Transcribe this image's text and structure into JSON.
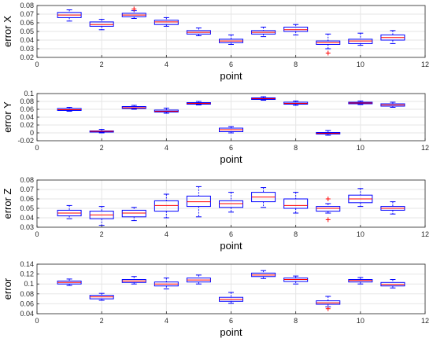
{
  "chart_data": [
    {
      "type": "boxplot",
      "xlabel": "point",
      "ylabel": "error X",
      "xlim": [
        0,
        12
      ],
      "xticks": [
        0,
        2,
        4,
        6,
        8,
        10,
        12
      ],
      "ylim": [
        0.02,
        0.08
      ],
      "yticks": [
        0.02,
        0.03,
        0.04,
        0.05,
        0.06,
        0.07,
        0.08
      ],
      "ytick_labels": [
        "0.02",
        "0.03",
        "0.04",
        "0.05",
        "0.06",
        "0.07",
        "0.08"
      ],
      "grid": true,
      "boxes": [
        {
          "x": 1,
          "whisker_low": 0.062,
          "q1": 0.066,
          "median": 0.069,
          "q3": 0.072,
          "whisker_high": 0.075,
          "outliers": []
        },
        {
          "x": 2,
          "whisker_low": 0.052,
          "q1": 0.056,
          "median": 0.058,
          "q3": 0.061,
          "whisker_high": 0.064,
          "outliers": []
        },
        {
          "x": 3,
          "whisker_low": 0.065,
          "q1": 0.067,
          "median": 0.069,
          "q3": 0.071,
          "whisker_high": 0.074,
          "outliers": [
            0.076
          ]
        },
        {
          "x": 4,
          "whisker_low": 0.056,
          "q1": 0.058,
          "median": 0.061,
          "q3": 0.063,
          "whisker_high": 0.066,
          "outliers": []
        },
        {
          "x": 5,
          "whisker_low": 0.045,
          "q1": 0.047,
          "median": 0.049,
          "q3": 0.051,
          "whisker_high": 0.054,
          "outliers": []
        },
        {
          "x": 6,
          "whisker_low": 0.035,
          "q1": 0.037,
          "median": 0.039,
          "q3": 0.041,
          "whisker_high": 0.046,
          "outliers": []
        },
        {
          "x": 7,
          "whisker_low": 0.044,
          "q1": 0.047,
          "median": 0.049,
          "q3": 0.051,
          "whisker_high": 0.055,
          "outliers": []
        },
        {
          "x": 8,
          "whisker_low": 0.046,
          "q1": 0.05,
          "median": 0.052,
          "q3": 0.055,
          "whisker_high": 0.058,
          "outliers": []
        },
        {
          "x": 9,
          "whisker_low": 0.03,
          "q1": 0.035,
          "median": 0.037,
          "q3": 0.039,
          "whisker_high": 0.047,
          "outliers": [
            0.025
          ]
        },
        {
          "x": 10,
          "whisker_low": 0.034,
          "q1": 0.036,
          "median": 0.039,
          "q3": 0.041,
          "whisker_high": 0.048,
          "outliers": []
        },
        {
          "x": 11,
          "whisker_low": 0.036,
          "q1": 0.04,
          "median": 0.043,
          "q3": 0.046,
          "whisker_high": 0.051,
          "outliers": []
        }
      ]
    },
    {
      "type": "boxplot",
      "xlabel": "point",
      "ylabel": "error Y",
      "xlim": [
        0,
        12
      ],
      "xticks": [
        0,
        2,
        4,
        6,
        8,
        10,
        12
      ],
      "ylim": [
        -0.02,
        0.1
      ],
      "yticks": [
        -0.02,
        0,
        0.02,
        0.04,
        0.06,
        0.08,
        0.1
      ],
      "ytick_labels": [
        "-0.02",
        "0",
        "0.02",
        "0.04",
        "0.06",
        "0.08",
        "0.1"
      ],
      "grid": true,
      "boxes": [
        {
          "x": 1,
          "whisker_low": 0.055,
          "q1": 0.057,
          "median": 0.059,
          "q3": 0.062,
          "whisker_high": 0.065,
          "outliers": []
        },
        {
          "x": 2,
          "whisker_low": 0.0,
          "q1": 0.002,
          "median": 0.004,
          "q3": 0.005,
          "whisker_high": 0.009,
          "outliers": []
        },
        {
          "x": 3,
          "whisker_low": 0.06,
          "q1": 0.062,
          "median": 0.064,
          "q3": 0.067,
          "whisker_high": 0.07,
          "outliers": []
        },
        {
          "x": 4,
          "whisker_low": 0.05,
          "q1": 0.053,
          "median": 0.055,
          "q3": 0.058,
          "whisker_high": 0.063,
          "outliers": []
        },
        {
          "x": 5,
          "whisker_low": 0.071,
          "q1": 0.073,
          "median": 0.075,
          "q3": 0.077,
          "whisker_high": 0.08,
          "outliers": []
        },
        {
          "x": 6,
          "whisker_low": 0.0,
          "q1": 0.003,
          "median": 0.008,
          "q3": 0.012,
          "whisker_high": 0.016,
          "outliers": []
        },
        {
          "x": 7,
          "whisker_low": 0.083,
          "q1": 0.085,
          "median": 0.087,
          "q3": 0.089,
          "whisker_high": 0.092,
          "outliers": []
        },
        {
          "x": 8,
          "whisker_low": 0.07,
          "q1": 0.073,
          "median": 0.075,
          "q3": 0.078,
          "whisker_high": 0.081,
          "outliers": []
        },
        {
          "x": 9,
          "whisker_low": -0.006,
          "q1": -0.003,
          "median": -0.001,
          "q3": 0.001,
          "whisker_high": 0.006,
          "outliers": []
        },
        {
          "x": 10,
          "whisker_low": 0.072,
          "q1": 0.074,
          "median": 0.076,
          "q3": 0.078,
          "whisker_high": 0.081,
          "outliers": []
        },
        {
          "x": 11,
          "whisker_low": 0.065,
          "q1": 0.068,
          "median": 0.071,
          "q3": 0.074,
          "whisker_high": 0.078,
          "outliers": []
        }
      ]
    },
    {
      "type": "boxplot",
      "xlabel": "point",
      "ylabel": "error Z",
      "xlim": [
        0,
        12
      ],
      "xticks": [
        0,
        2,
        4,
        6,
        8,
        10,
        12
      ],
      "ylim": [
        0.03,
        0.08
      ],
      "yticks": [
        0.03,
        0.04,
        0.05,
        0.06,
        0.07,
        0.08
      ],
      "ytick_labels": [
        "0.03",
        "0.04",
        "0.05",
        "0.06",
        "0.07",
        "0.08"
      ],
      "grid": true,
      "boxes": [
        {
          "x": 1,
          "whisker_low": 0.039,
          "q1": 0.042,
          "median": 0.045,
          "q3": 0.048,
          "whisker_high": 0.053,
          "outliers": []
        },
        {
          "x": 2,
          "whisker_low": 0.032,
          "q1": 0.039,
          "median": 0.043,
          "q3": 0.047,
          "whisker_high": 0.052,
          "outliers": []
        },
        {
          "x": 3,
          "whisker_low": 0.037,
          "q1": 0.041,
          "median": 0.045,
          "q3": 0.048,
          "whisker_high": 0.051,
          "outliers": []
        },
        {
          "x": 4,
          "whisker_low": 0.04,
          "q1": 0.047,
          "median": 0.053,
          "q3": 0.058,
          "whisker_high": 0.065,
          "outliers": []
        },
        {
          "x": 5,
          "whisker_low": 0.041,
          "q1": 0.052,
          "median": 0.057,
          "q3": 0.063,
          "whisker_high": 0.073,
          "outliers": []
        },
        {
          "x": 6,
          "whisker_low": 0.046,
          "q1": 0.051,
          "median": 0.055,
          "q3": 0.058,
          "whisker_high": 0.067,
          "outliers": []
        },
        {
          "x": 7,
          "whisker_low": 0.051,
          "q1": 0.057,
          "median": 0.062,
          "q3": 0.067,
          "whisker_high": 0.072,
          "outliers": []
        },
        {
          "x": 8,
          "whisker_low": 0.045,
          "q1": 0.05,
          "median": 0.053,
          "q3": 0.06,
          "whisker_high": 0.067,
          "outliers": []
        },
        {
          "x": 9,
          "whisker_low": 0.045,
          "q1": 0.047,
          "median": 0.05,
          "q3": 0.052,
          "whisker_high": 0.055,
          "outliers": [
            0.06,
            0.038
          ]
        },
        {
          "x": 10,
          "whisker_low": 0.052,
          "q1": 0.056,
          "median": 0.06,
          "q3": 0.064,
          "whisker_high": 0.071,
          "outliers": []
        },
        {
          "x": 11,
          "whisker_low": 0.044,
          "q1": 0.048,
          "median": 0.05,
          "q3": 0.052,
          "whisker_high": 0.057,
          "outliers": []
        }
      ]
    },
    {
      "type": "boxplot",
      "xlabel": "point",
      "ylabel": "error",
      "xlim": [
        0,
        12
      ],
      "xticks": [
        0,
        2,
        4,
        6,
        8,
        10,
        12
      ],
      "ylim": [
        0.04,
        0.14
      ],
      "yticks": [
        0.04,
        0.06,
        0.08,
        0.1,
        0.12,
        0.14
      ],
      "ytick_labels": [
        "0.04",
        "0.06",
        "0.08",
        "0.1",
        "0.12",
        "0.14"
      ],
      "grid": true,
      "boxes": [
        {
          "x": 1,
          "whisker_low": 0.097,
          "q1": 0.1,
          "median": 0.103,
          "q3": 0.106,
          "whisker_high": 0.11,
          "outliers": []
        },
        {
          "x": 2,
          "whisker_low": 0.067,
          "q1": 0.07,
          "median": 0.074,
          "q3": 0.077,
          "whisker_high": 0.081,
          "outliers": []
        },
        {
          "x": 3,
          "whisker_low": 0.1,
          "q1": 0.103,
          "median": 0.106,
          "q3": 0.109,
          "whisker_high": 0.115,
          "outliers": []
        },
        {
          "x": 4,
          "whisker_low": 0.09,
          "q1": 0.096,
          "median": 0.1,
          "q3": 0.104,
          "whisker_high": 0.112,
          "outliers": []
        },
        {
          "x": 5,
          "whisker_low": 0.1,
          "q1": 0.104,
          "median": 0.108,
          "q3": 0.112,
          "whisker_high": 0.118,
          "outliers": []
        },
        {
          "x": 6,
          "whisker_low": 0.061,
          "q1": 0.065,
          "median": 0.069,
          "q3": 0.073,
          "whisker_high": 0.083,
          "outliers": []
        },
        {
          "x": 7,
          "whisker_low": 0.111,
          "q1": 0.115,
          "median": 0.118,
          "q3": 0.122,
          "whisker_high": 0.127,
          "outliers": []
        },
        {
          "x": 8,
          "whisker_low": 0.1,
          "q1": 0.105,
          "median": 0.109,
          "q3": 0.112,
          "whisker_high": 0.116,
          "outliers": []
        },
        {
          "x": 9,
          "whisker_low": 0.054,
          "q1": 0.059,
          "median": 0.062,
          "q3": 0.066,
          "whisker_high": 0.075,
          "outliers": [
            0.05
          ]
        },
        {
          "x": 10,
          "whisker_low": 0.1,
          "q1": 0.104,
          "median": 0.107,
          "q3": 0.109,
          "whisker_high": 0.113,
          "outliers": []
        },
        {
          "x": 11,
          "whisker_low": 0.092,
          "q1": 0.096,
          "median": 0.099,
          "q3": 0.103,
          "whisker_high": 0.109,
          "outliers": []
        }
      ]
    }
  ],
  "colors": {
    "box": "#0000ff",
    "median": "#ff0000",
    "outlier": "#ff0000",
    "grid": "#e6e6e6",
    "axis": "#262626"
  }
}
